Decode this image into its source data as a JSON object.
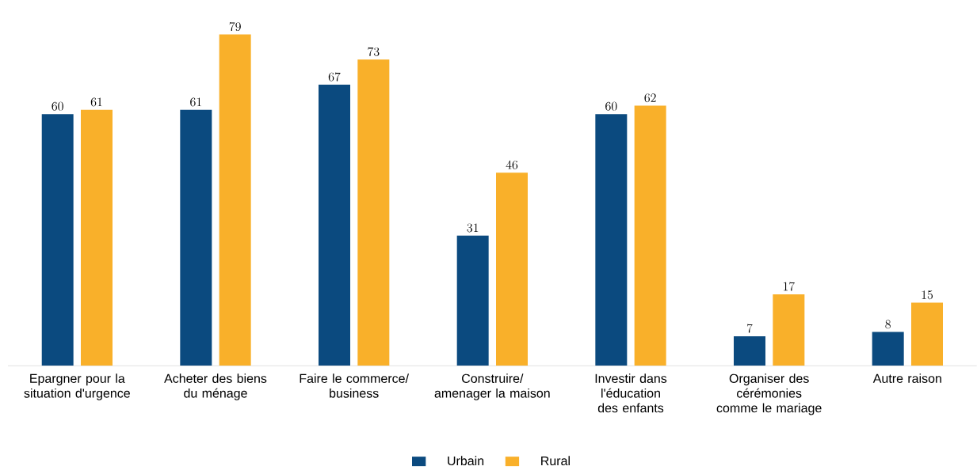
{
  "chart_data": {
    "type": "bar",
    "categories": [
      "Epargner pour la situation d'urgence",
      "Acheter des biens du ménage",
      "Faire le commerce/ business",
      "Construire/ amenager la maison",
      "Investir dans l'éducation des enfants",
      "Organiser des cérémonies comme le mariage",
      "Autre raison"
    ],
    "series": [
      {
        "name": "Urbain",
        "color": "#0b4a7f",
        "values": [
          60,
          61,
          67,
          31,
          60,
          7,
          8
        ]
      },
      {
        "name": "Rural",
        "color": "#f9b02a",
        "values": [
          61,
          79,
          73,
          46,
          62,
          17,
          15
        ]
      }
    ],
    "data_labels": true,
    "legend": "bottom"
  }
}
